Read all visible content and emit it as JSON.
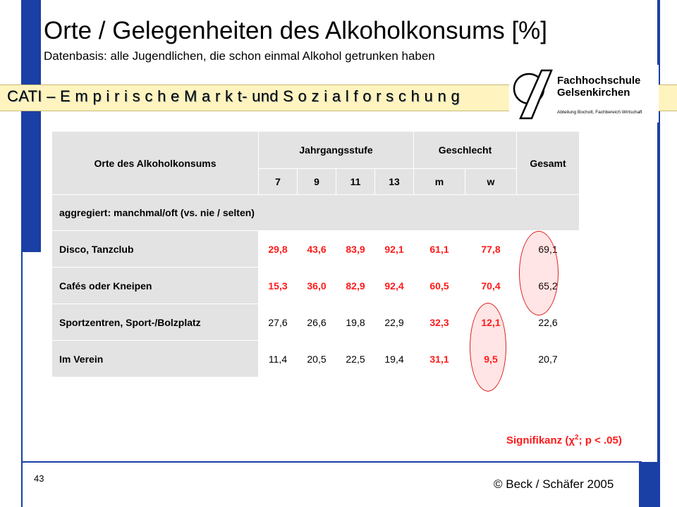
{
  "title": "Orte / Gelegenheiten des Alkoholkonsums   [%]",
  "subtitle": "Datenbasis: alle Jugendlichen, die schon einmal Alkohol getrunken haben",
  "band_text": "CATI – E m p i r i s c h e  M a r k t- und S o z i a l f o r s c h u n g",
  "logo": {
    "line1": "Fachhochschule",
    "line2": "Gelsenkirchen",
    "sub": "Abteilung Bocholt, Fachbereich Wirtschaft"
  },
  "table": {
    "row_header": "Orte des Alkoholkonsums",
    "group_jahrgang": "Jahrgangsstufe",
    "group_geschlecht": "Geschlecht",
    "total_header": "Gesamt",
    "subcols": [
      "7",
      "9",
      "11",
      "13",
      "m",
      "w"
    ],
    "section_label": "aggregiert: manchmal/oft (vs. nie / selten)",
    "rows": [
      {
        "label": "Disco, Tanzclub",
        "values": [
          "29,8",
          "43,6",
          "83,9",
          "92,1",
          "61,1",
          "77,8"
        ],
        "total": "69,1"
      },
      {
        "label": "Cafés oder Kneipen",
        "values": [
          "15,3",
          "36,0",
          "82,9",
          "92,4",
          "60,5",
          "70,4"
        ],
        "total": "65,2"
      },
      {
        "label": "Sportzentren, Sport-/Bolzplatz",
        "values": [
          "27,6",
          "26,6",
          "19,8",
          "22,9",
          "32,3",
          "12,1"
        ],
        "total": "22,6"
      },
      {
        "label": "Im Verein",
        "values": [
          "11,4",
          "20,5",
          "22,5",
          "19,4",
          "31,1",
          "9,5"
        ],
        "total": "20,7"
      }
    ]
  },
  "significance": {
    "prefix": "Signifikanz (",
    "chi": "χ",
    "sup": "2",
    "suffix": "; p < .05)"
  },
  "page_number": "43",
  "copyright": "© Beck / Schäfer 2005",
  "colors": {
    "frame_blue": "#1a3fa5",
    "significant_red": "#ff1a1a",
    "band_yellow": "#fff4bf",
    "cell_grey": "#e3e3e3"
  }
}
